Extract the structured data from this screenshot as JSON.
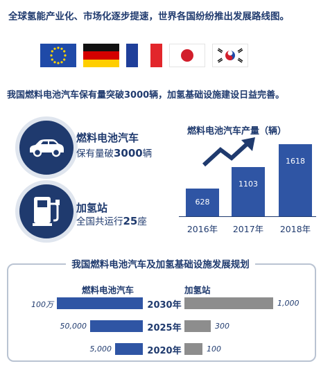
{
  "headline1": "全球氢能产业化、市场化逐步提速，世界各国纷纷推出发展路线图。",
  "flags": [
    "eu-flag",
    "germany-flag",
    "france-flag",
    "japan-flag",
    "korea-flag"
  ],
  "headline2": "我国燃料电池汽车保有量突破3000辆，加氢基础设施建设日益完善。",
  "stats": [
    {
      "title": "燃料电池汽车",
      "sub_prefix": "保有量破",
      "sub_value": "3000",
      "sub_suffix": "辆",
      "icon": "car-icon"
    },
    {
      "title": "加氢站",
      "sub_prefix": "全国共运行",
      "sub_value": "25",
      "sub_suffix": "座",
      "icon": "hydrogen-pump-icon"
    }
  ],
  "chart_data": {
    "type": "bar",
    "title": "燃料电池汽车产量（辆）",
    "categories": [
      "2016年",
      "2017年",
      "2018年"
    ],
    "values": [
      628,
      1103,
      1618
    ],
    "ylim": [
      0,
      1750
    ],
    "grid": false
  },
  "plan": {
    "title": "我国燃料电池汽车及加氢基础设施发展规划",
    "left_legend": "燃料电池汽车",
    "right_legend": "加氢站",
    "rows": [
      {
        "year": "2030年",
        "vehicles_label": "100万",
        "stations_label": "1,000",
        "vehicles": 1000000,
        "stations": 1000
      },
      {
        "year": "2025年",
        "vehicles_label": "50,000",
        "stations_label": "300",
        "vehicles": 50000,
        "stations": 300
      },
      {
        "year": "2020年",
        "vehicles_label": "5,000",
        "stations_label": "100",
        "vehicles": 5000,
        "stations": 100
      }
    ]
  },
  "colors": {
    "navy": "#1f3a6e",
    "bar_blue": "#2f55a4",
    "gray": "#8d8d8d",
    "ring": "#dfe5ee"
  }
}
